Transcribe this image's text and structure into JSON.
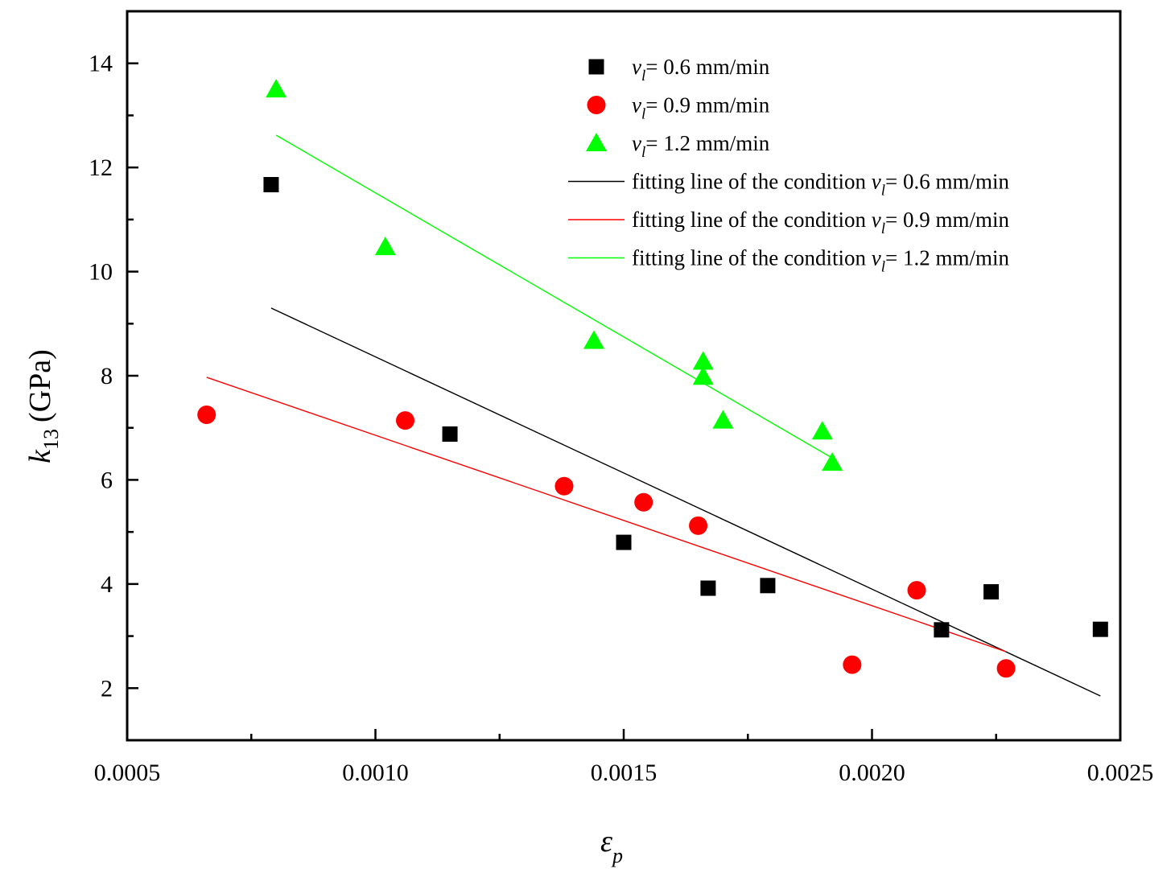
{
  "chart_data": {
    "type": "scatter",
    "xlabel": {
      "symbol": "ε",
      "subscript": "p"
    },
    "ylabel": {
      "symbol": "k",
      "subscript": "13",
      "unit": "(GPa)"
    },
    "xlim": [
      0.0005,
      0.0025
    ],
    "ylim": [
      1,
      15
    ],
    "x_ticks": [
      "0.0005",
      "0.0010",
      "0.0015",
      "0.0020",
      "0.0025"
    ],
    "x_tick_values": [
      0.0005,
      0.001,
      0.0015,
      0.002,
      0.0025
    ],
    "y_ticks": [
      "2",
      "4",
      "6",
      "8",
      "10",
      "12",
      "14"
    ],
    "y_tick_values": [
      2,
      4,
      6,
      8,
      10,
      12,
      14
    ],
    "legend_position": "top-right",
    "series": [
      {
        "name": "0.6 mm/min",
        "marker": "square",
        "color": "#000000",
        "points": [
          [
            0.00079,
            11.67
          ],
          [
            0.00115,
            6.88
          ],
          [
            0.0015,
            4.8
          ],
          [
            0.00167,
            3.92
          ],
          [
            0.00179,
            3.97
          ],
          [
            0.00214,
            3.12
          ],
          [
            0.00224,
            3.85
          ],
          [
            0.00246,
            3.13
          ]
        ]
      },
      {
        "name": "0.9 mm/min",
        "marker": "circle",
        "color": "#ff0000",
        "points": [
          [
            0.00066,
            7.25
          ],
          [
            0.00106,
            7.14
          ],
          [
            0.00138,
            5.88
          ],
          [
            0.00154,
            5.57
          ],
          [
            0.00165,
            5.12
          ],
          [
            0.00196,
            2.45
          ],
          [
            0.00209,
            3.88
          ],
          [
            0.00227,
            2.38
          ]
        ]
      },
      {
        "name": "1.2 mm/min",
        "marker": "triangle",
        "color": "#00ff00",
        "points": [
          [
            0.0008,
            13.5
          ],
          [
            0.00102,
            10.47
          ],
          [
            0.00144,
            8.67
          ],
          [
            0.00166,
            8.27
          ],
          [
            0.00166,
            7.98
          ],
          [
            0.0017,
            7.14
          ],
          [
            0.0019,
            6.93
          ],
          [
            0.00192,
            6.33
          ]
        ]
      }
    ],
    "fit_lines": [
      {
        "name": "fitting line of the condition 0.6 mm/min",
        "color": "#000000",
        "points": [
          [
            0.00079,
            9.3
          ],
          [
            0.00246,
            1.85
          ]
        ]
      },
      {
        "name": "fitting line of the condition 0.9 mm/min",
        "color": "#ff0000",
        "points": [
          [
            0.00066,
            7.97
          ],
          [
            0.00227,
            2.7
          ]
        ]
      },
      {
        "name": "fitting line of the condition 1.2 mm/min",
        "color": "#00ff00",
        "points": [
          [
            0.0008,
            12.62
          ],
          [
            0.00192,
            6.42
          ]
        ]
      }
    ],
    "legend": [
      {
        "kind": "marker",
        "series": 0,
        "prefix": "",
        "var": "v",
        "sub": "l",
        "value": "= 0.6 mm/min"
      },
      {
        "kind": "marker",
        "series": 1,
        "prefix": "",
        "var": "v",
        "sub": "l",
        "value": "= 0.9 mm/min"
      },
      {
        "kind": "marker",
        "series": 2,
        "prefix": "",
        "var": "v",
        "sub": "l",
        "value": "= 1.2 mm/min"
      },
      {
        "kind": "line",
        "series": 0,
        "prefix": "fitting line of the condition ",
        "var": "v",
        "sub": "l",
        "value": "= 0.6 mm/min"
      },
      {
        "kind": "line",
        "series": 1,
        "prefix": "fitting line of the condition ",
        "var": "v",
        "sub": "l",
        "value": "= 0.9 mm/min"
      },
      {
        "kind": "line",
        "series": 2,
        "prefix": "fitting line of the condition ",
        "var": "v",
        "sub": "l",
        "value": "= 1.2 mm/min"
      }
    ]
  }
}
